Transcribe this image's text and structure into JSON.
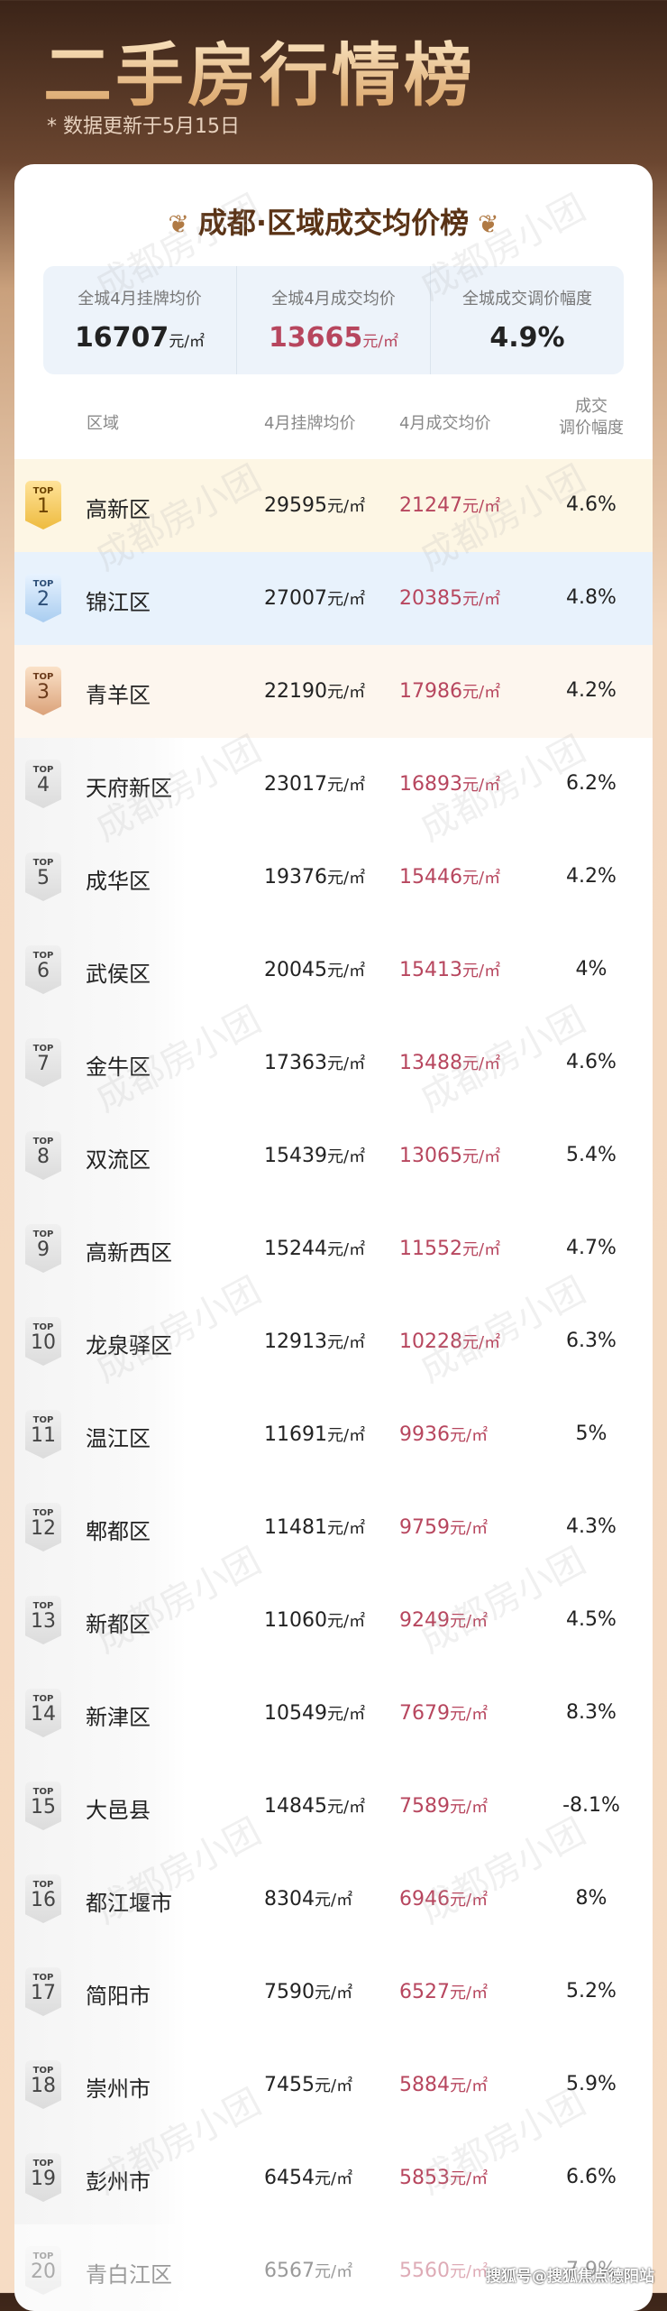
{
  "header": {
    "title": "二手房行情榜",
    "update_note": "* 数据更新于5月15日"
  },
  "card": {
    "title": "成都·区域成交均价榜"
  },
  "summary": [
    {
      "label": "全城4月挂牌均价",
      "value": "16707",
      "unit": "元/㎡"
    },
    {
      "label": "全城4月成交均价",
      "value": "13665",
      "unit": "元/㎡"
    },
    {
      "label": "全城成交调价幅度",
      "value": "4.9%",
      "unit": ""
    }
  ],
  "table": {
    "headers": {
      "region": "区域",
      "listing": "4月挂牌均价",
      "deal": "4月成交均价",
      "change": "成交\n调价幅度"
    },
    "badge_prefix": "TOP",
    "unit": "元/㎡",
    "rows": [
      {
        "rank": "1",
        "region": "高新区",
        "listing": "29595",
        "deal": "21247",
        "change": "4.6%"
      },
      {
        "rank": "2",
        "region": "锦江区",
        "listing": "27007",
        "deal": "20385",
        "change": "4.8%"
      },
      {
        "rank": "3",
        "region": "青羊区",
        "listing": "22190",
        "deal": "17986",
        "change": "4.2%"
      },
      {
        "rank": "4",
        "region": "天府新区",
        "listing": "23017",
        "deal": "16893",
        "change": "6.2%"
      },
      {
        "rank": "5",
        "region": "成华区",
        "listing": "19376",
        "deal": "15446",
        "change": "4.2%"
      },
      {
        "rank": "6",
        "region": "武侯区",
        "listing": "20045",
        "deal": "15413",
        "change": "4%"
      },
      {
        "rank": "7",
        "region": "金牛区",
        "listing": "17363",
        "deal": "13488",
        "change": "4.6%"
      },
      {
        "rank": "8",
        "region": "双流区",
        "listing": "15439",
        "deal": "13065",
        "change": "5.4%"
      },
      {
        "rank": "9",
        "region": "高新西区",
        "listing": "15244",
        "deal": "11552",
        "change": "4.7%"
      },
      {
        "rank": "10",
        "region": "龙泉驿区",
        "listing": "12913",
        "deal": "10228",
        "change": "6.3%"
      },
      {
        "rank": "11",
        "region": "温江区",
        "listing": "11691",
        "deal": "9936",
        "change": "5%"
      },
      {
        "rank": "12",
        "region": "郫都区",
        "listing": "11481",
        "deal": "9759",
        "change": "4.3%"
      },
      {
        "rank": "13",
        "region": "新都区",
        "listing": "11060",
        "deal": "9249",
        "change": "4.5%"
      },
      {
        "rank": "14",
        "region": "新津区",
        "listing": "10549",
        "deal": "7679",
        "change": "8.3%"
      },
      {
        "rank": "15",
        "region": "大邑县",
        "listing": "14845",
        "deal": "7589",
        "change": "-8.1%"
      },
      {
        "rank": "16",
        "region": "都江堰市",
        "listing": "8304",
        "deal": "6946",
        "change": "8%"
      },
      {
        "rank": "17",
        "region": "简阳市",
        "listing": "7590",
        "deal": "6527",
        "change": "5.2%"
      },
      {
        "rank": "18",
        "region": "崇州市",
        "listing": "7455",
        "deal": "5884",
        "change": "5.9%"
      },
      {
        "rank": "19",
        "region": "彭州市",
        "listing": "6454",
        "deal": "5853",
        "change": "6.6%"
      },
      {
        "rank": "20",
        "region": "青白江区",
        "listing": "6567",
        "deal": "5560",
        "change": "7.9%"
      }
    ]
  },
  "watermark": "成都房小团",
  "credit": "搜狐号@搜狐焦点德阳站",
  "colors": {
    "deal_price": "#b7465e",
    "gold": "#eebb3f",
    "silver_blue": "#a9cdf0",
    "bronze": "#dba27a"
  }
}
